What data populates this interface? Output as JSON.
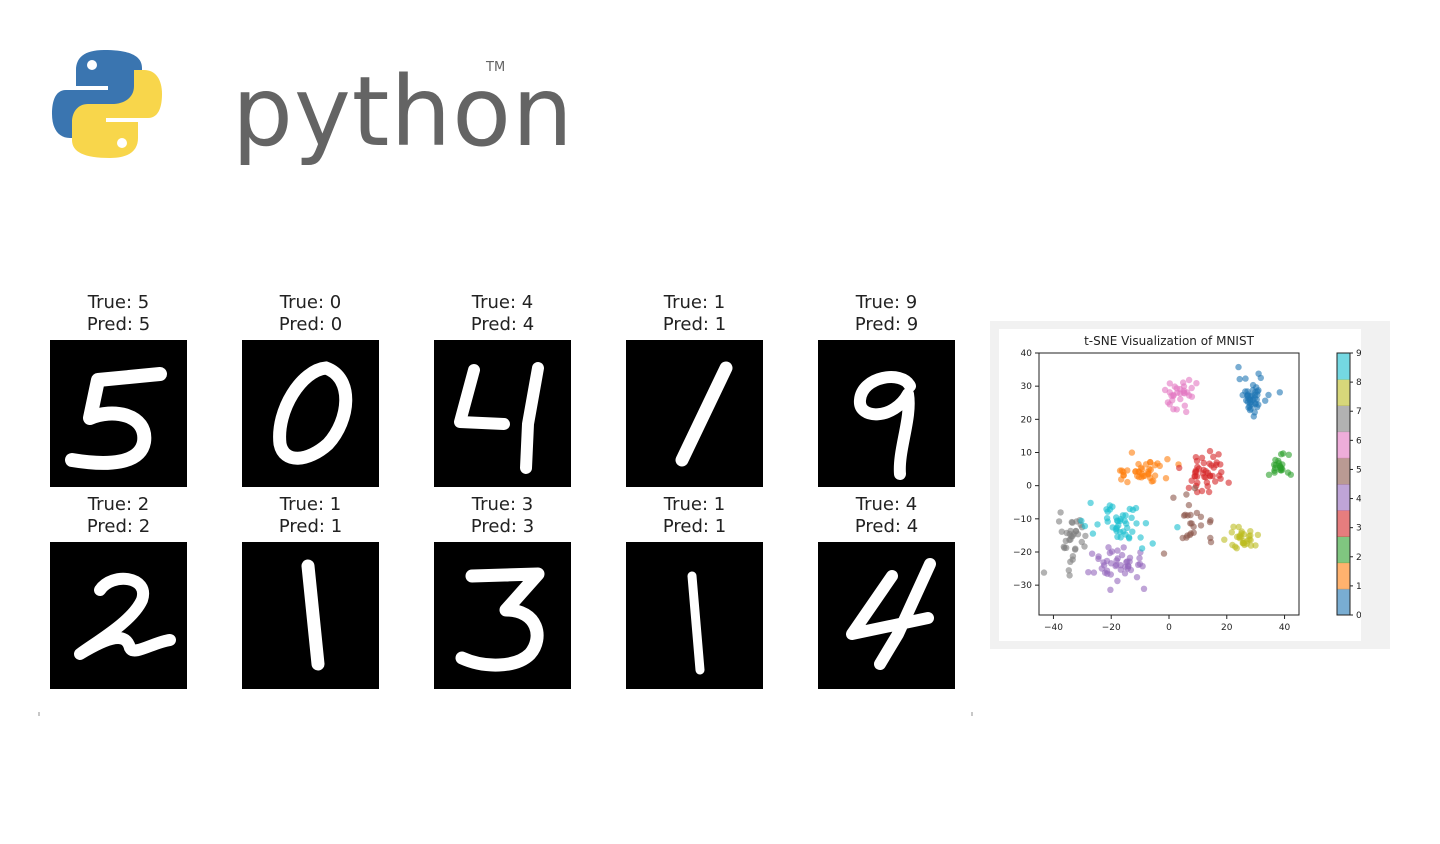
{
  "logo": {
    "wordmark": "python",
    "trademark": "TM",
    "colors": {
      "blue": "#3a75b0",
      "yellow": "#f8d64b",
      "text": "#646464"
    }
  },
  "digits": [
    {
      "title": "True: 5\nPred: 5",
      "glyph": "5"
    },
    {
      "title": "True: 0\nPred: 0",
      "glyph": "0"
    },
    {
      "title": "True: 4\nPred: 4",
      "glyph": "4"
    },
    {
      "title": "True: 1\nPred: 1",
      "glyph": "1"
    },
    {
      "title": "True: 9\nPred: 9",
      "glyph": "9"
    },
    {
      "title": "True: 2\nPred: 2",
      "glyph": "2"
    },
    {
      "title": "True: 1\nPred: 1",
      "glyph": "1"
    },
    {
      "title": "True: 3\nPred: 3",
      "glyph": "3"
    },
    {
      "title": "True: 1\nPred: 1",
      "glyph": "1"
    },
    {
      "title": "True: 4\nPred: 4",
      "glyph": "4"
    }
  ],
  "chart_data": {
    "type": "scatter",
    "title": "t-SNE Visualization of MNIST",
    "xlabel": "",
    "ylabel": "",
    "xlim": [
      -45,
      45
    ],
    "ylim": [
      -39,
      40
    ],
    "xticks": [
      -40,
      -20,
      0,
      20,
      40
    ],
    "yticks": [
      -30,
      -20,
      -10,
      0,
      10,
      20,
      30,
      40
    ],
    "grid": false,
    "colorbar": {
      "min": 0,
      "max": 9,
      "ticks": [
        0,
        1,
        2,
        3,
        4,
        5,
        6,
        7,
        8,
        9
      ],
      "colors": [
        "#1f77b4",
        "#ff7f0e",
        "#2ca02c",
        "#d62728",
        "#9467bd",
        "#8c564b",
        "#e377c2",
        "#7f7f7f",
        "#bcbd22",
        "#17becf"
      ]
    },
    "clusters": [
      {
        "label": 0,
        "center": [
          29,
          27
        ],
        "spread": [
          4,
          5
        ],
        "count": 45
      },
      {
        "label": 1,
        "center": [
          -10,
          4
        ],
        "spread": [
          9,
          3
        ],
        "count": 40
      },
      {
        "label": 2,
        "center": [
          38,
          6
        ],
        "spread": [
          3,
          3
        ],
        "count": 22
      },
      {
        "label": 3,
        "center": [
          13,
          4
        ],
        "spread": [
          7,
          6
        ],
        "count": 45
      },
      {
        "label": 4,
        "center": [
          -17,
          -24
        ],
        "spread": [
          8,
          5
        ],
        "count": 45
      },
      {
        "label": 5,
        "center": [
          8,
          -10
        ],
        "spread": [
          6,
          5
        ],
        "count": 25
      },
      {
        "label": 6,
        "center": [
          4,
          28
        ],
        "spread": [
          5,
          4
        ],
        "count": 30
      },
      {
        "label": 7,
        "center": [
          -33,
          -16
        ],
        "spread": [
          4,
          7
        ],
        "count": 35
      },
      {
        "label": 8,
        "center": [
          25,
          -16
        ],
        "spread": [
          5,
          3
        ],
        "count": 30
      },
      {
        "label": 9,
        "center": [
          -16,
          -12
        ],
        "spread": [
          10,
          5
        ],
        "count": 45
      }
    ]
  }
}
